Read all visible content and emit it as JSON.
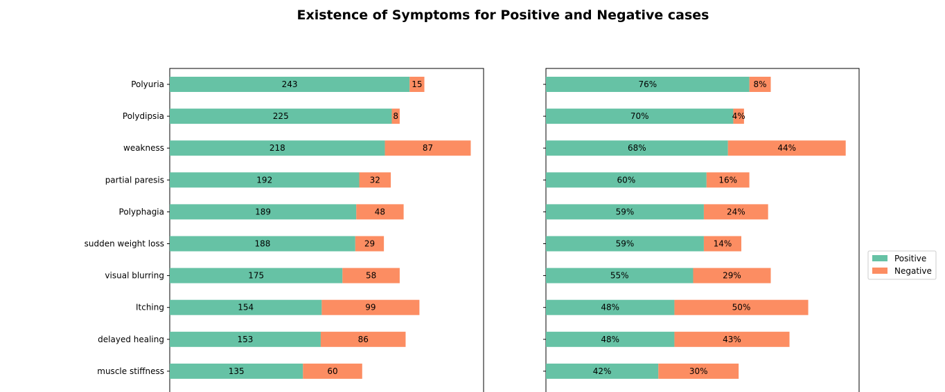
{
  "title": "Existence of Symptoms for Positive and Negative cases",
  "colors": {
    "positive": "#66c2a5",
    "negative": "#fc8d62"
  },
  "legend": {
    "placement": "right",
    "entries": [
      "Positive",
      "Negative"
    ]
  },
  "chart_data": [
    {
      "type": "bar",
      "orientation": "horizontal",
      "stacked": true,
      "categories": [
        "Polyuria",
        "Polydipsia",
        "weakness",
        "partial paresis",
        "Polyphagia",
        "sudden weight loss",
        "visual blurring",
        "Itching",
        "delayed healing",
        "muscle stiffness"
      ],
      "series": [
        {
          "name": "Positive",
          "values": [
            243,
            225,
            218,
            192,
            189,
            188,
            175,
            154,
            153,
            135
          ]
        },
        {
          "name": "Negative",
          "values": [
            15,
            8,
            87,
            32,
            48,
            29,
            58,
            99,
            86,
            60
          ]
        }
      ],
      "value_labels": {
        "Positive": [
          "243",
          "225",
          "218",
          "192",
          "189",
          "188",
          "175",
          "154",
          "153",
          "135"
        ],
        "Negative": [
          "15",
          "8",
          "87",
          "32",
          "48",
          "29",
          "58",
          "99",
          "86",
          "60"
        ]
      },
      "xlim": [
        0,
        318
      ],
      "show_category_labels": true
    },
    {
      "type": "bar",
      "orientation": "horizontal",
      "stacked": true,
      "categories": [
        "Polyuria",
        "Polydipsia",
        "weakness",
        "partial paresis",
        "Polyphagia",
        "sudden weight loss",
        "visual blurring",
        "Itching",
        "delayed healing",
        "muscle stiffness"
      ],
      "series": [
        {
          "name": "Positive",
          "values": [
            76,
            70,
            68,
            60,
            59,
            59,
            55,
            48,
            48,
            42
          ]
        },
        {
          "name": "Negative",
          "values": [
            8,
            4,
            44,
            16,
            24,
            14,
            29,
            50,
            43,
            30
          ]
        }
      ],
      "value_labels": {
        "Positive": [
          "76%",
          "70%",
          "68%",
          "60%",
          "59%",
          "59%",
          "55%",
          "48%",
          "48%",
          "42%"
        ],
        "Negative": [
          "8%",
          "4%",
          "44%",
          "16%",
          "24%",
          "14%",
          "29%",
          "50%",
          "43%",
          "30%"
        ]
      },
      "xlim": [
        0,
        117
      ],
      "show_category_labels": false
    }
  ]
}
